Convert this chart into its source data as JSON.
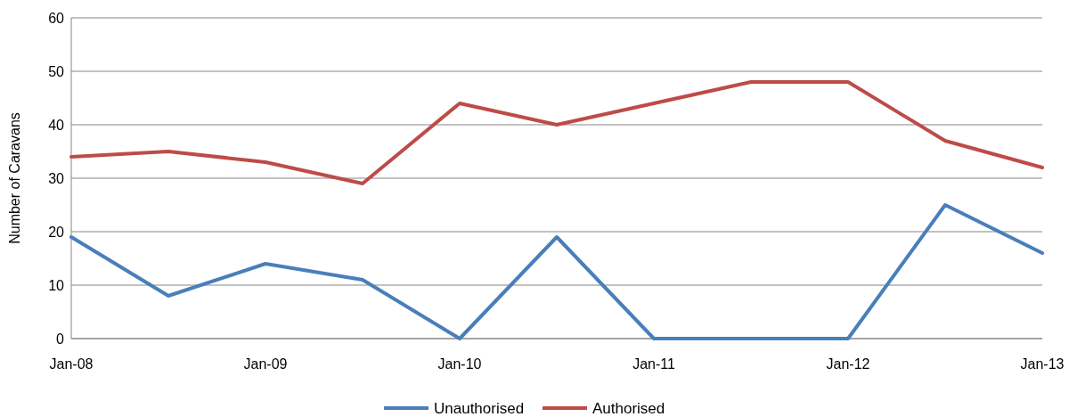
{
  "chart_data": {
    "type": "line",
    "ylabel": "Number of Caravans",
    "categories": [
      "Jan-08",
      null,
      "Jan-09",
      null,
      "Jan-10",
      null,
      "Jan-11",
      null,
      "Jan-12",
      null,
      "Jan-13"
    ],
    "series": [
      {
        "name": "Unauthorised",
        "color": "#4a7ebb",
        "values": [
          19,
          8,
          14,
          11,
          0,
          19,
          0,
          0,
          0,
          25,
          16
        ]
      },
      {
        "name": "Authorised",
        "color": "#be4b48",
        "values": [
          34,
          35,
          33,
          29,
          44,
          40,
          44,
          48,
          48,
          37,
          32
        ]
      }
    ],
    "ylim": [
      0,
      60
    ],
    "yticks": [
      0,
      10,
      20,
      30,
      40,
      50,
      60
    ],
    "grid": "y",
    "legend": "bottom",
    "marker": "none",
    "line_style": "solid"
  }
}
